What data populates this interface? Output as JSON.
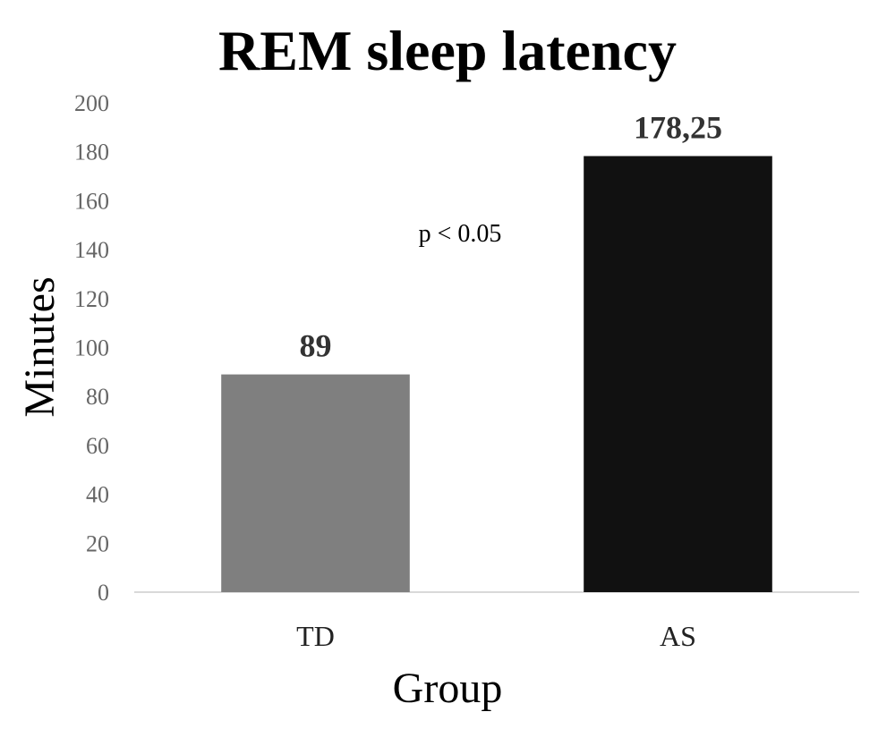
{
  "chart_data": {
    "type": "bar",
    "title": "REM sleep latency",
    "xlabel": "Group",
    "ylabel": "Minutes",
    "categories": [
      "TD",
      "AS"
    ],
    "values": [
      89,
      178.25
    ],
    "value_labels": [
      "89",
      "178,25"
    ],
    "colors": [
      "#7f7f7f",
      "#111111"
    ],
    "ylim": [
      0,
      200
    ],
    "yticks": [
      0,
      20,
      40,
      60,
      80,
      100,
      120,
      140,
      160,
      180,
      200
    ],
    "grid": false,
    "legend": "none",
    "annotation": "p < 0.05"
  }
}
